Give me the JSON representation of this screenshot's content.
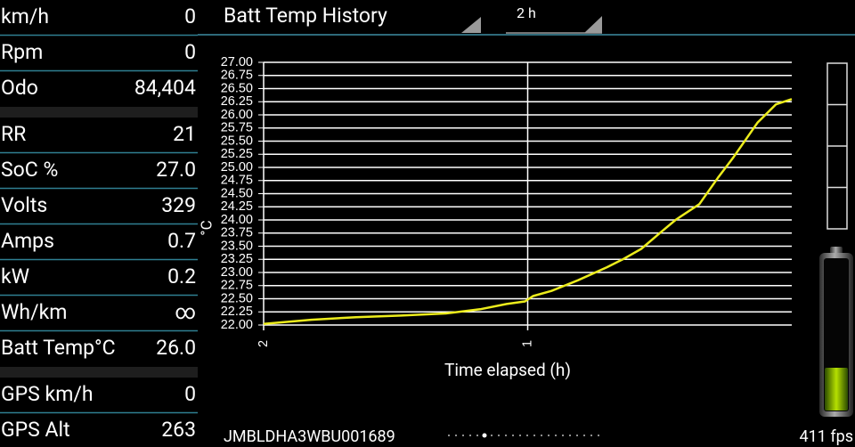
{
  "left_panel": {
    "groups": [
      [
        {
          "label": "km/h",
          "value": "0"
        },
        {
          "label": "Rpm",
          "value": "0"
        },
        {
          "label": "Odo",
          "value": "84,404"
        }
      ],
      [
        {
          "label": "RR",
          "value": "21"
        },
        {
          "label": "SoC %",
          "value": "27.0"
        },
        {
          "label": "Volts",
          "value": "329"
        },
        {
          "label": "Amps",
          "value": "0.7"
        },
        {
          "label": "kW",
          "value": "0.2"
        },
        {
          "label": "Wh/km",
          "value": "∞"
        },
        {
          "label": "Batt Temp°C",
          "value": "26.0"
        }
      ],
      [
        {
          "label": "GPS km/h",
          "value": "0"
        },
        {
          "label": "GPS Alt",
          "value": "263"
        }
      ]
    ]
  },
  "header": {
    "title": "Batt Temp History",
    "range": "2 h"
  },
  "chart_data": {
    "type": "line",
    "x_label": "Time elapsed (h)",
    "y_label": "°C",
    "color": "#ecec1c",
    "grid": true,
    "x": [
      2.0,
      1.82,
      1.65,
      1.48,
      1.31,
      1.18,
      1.08,
      1.01,
      0.98,
      0.91,
      0.81,
      0.7,
      0.64,
      0.57,
      0.5,
      0.44,
      0.35,
      0.28,
      0.22,
      0.13,
      0.06,
      0.0
    ],
    "values": [
      22.02,
      22.1,
      22.15,
      22.18,
      22.22,
      22.3,
      22.4,
      22.45,
      22.55,
      22.65,
      22.85,
      23.1,
      23.25,
      23.45,
      23.75,
      24.0,
      24.3,
      24.8,
      25.2,
      25.85,
      26.2,
      26.3
    ],
    "xlim": [
      2,
      0
    ],
    "xticks": [
      2,
      1
    ],
    "ylim": [
      22,
      27
    ],
    "yticks": [
      {
        "value": 22,
        "label": "22.00"
      },
      {
        "value": 22.25,
        "label": "22.25"
      },
      {
        "value": 22.5,
        "label": "22.50"
      },
      {
        "value": 22.75,
        "label": "22.75"
      },
      {
        "value": 23,
        "label": "23.00"
      },
      {
        "value": 23.25,
        "label": "23.25"
      },
      {
        "value": 23.5,
        "label": "23.50"
      },
      {
        "value": 23.75,
        "label": "23.75"
      },
      {
        "value": 24,
        "label": "24.00"
      },
      {
        "value": 24.25,
        "label": "24.25"
      },
      {
        "value": 24.5,
        "label": "24.50"
      },
      {
        "value": 24.75,
        "label": "24.75"
      },
      {
        "value": 25,
        "label": "25.00"
      },
      {
        "value": 25.25,
        "label": "25.25"
      },
      {
        "value": 25.5,
        "label": "25.50"
      },
      {
        "value": 25.75,
        "label": "25.75"
      },
      {
        "value": 26,
        "label": "26.00"
      },
      {
        "value": 26.25,
        "label": "26.25"
      },
      {
        "value": 26.5,
        "label": "26.50"
      },
      {
        "value": 26.75,
        "label": "26.75"
      },
      {
        "value": 27,
        "label": "27.00"
      }
    ]
  },
  "footer": {
    "vin": "JMBLDHA3WBU001689",
    "fps": "411 fps"
  }
}
